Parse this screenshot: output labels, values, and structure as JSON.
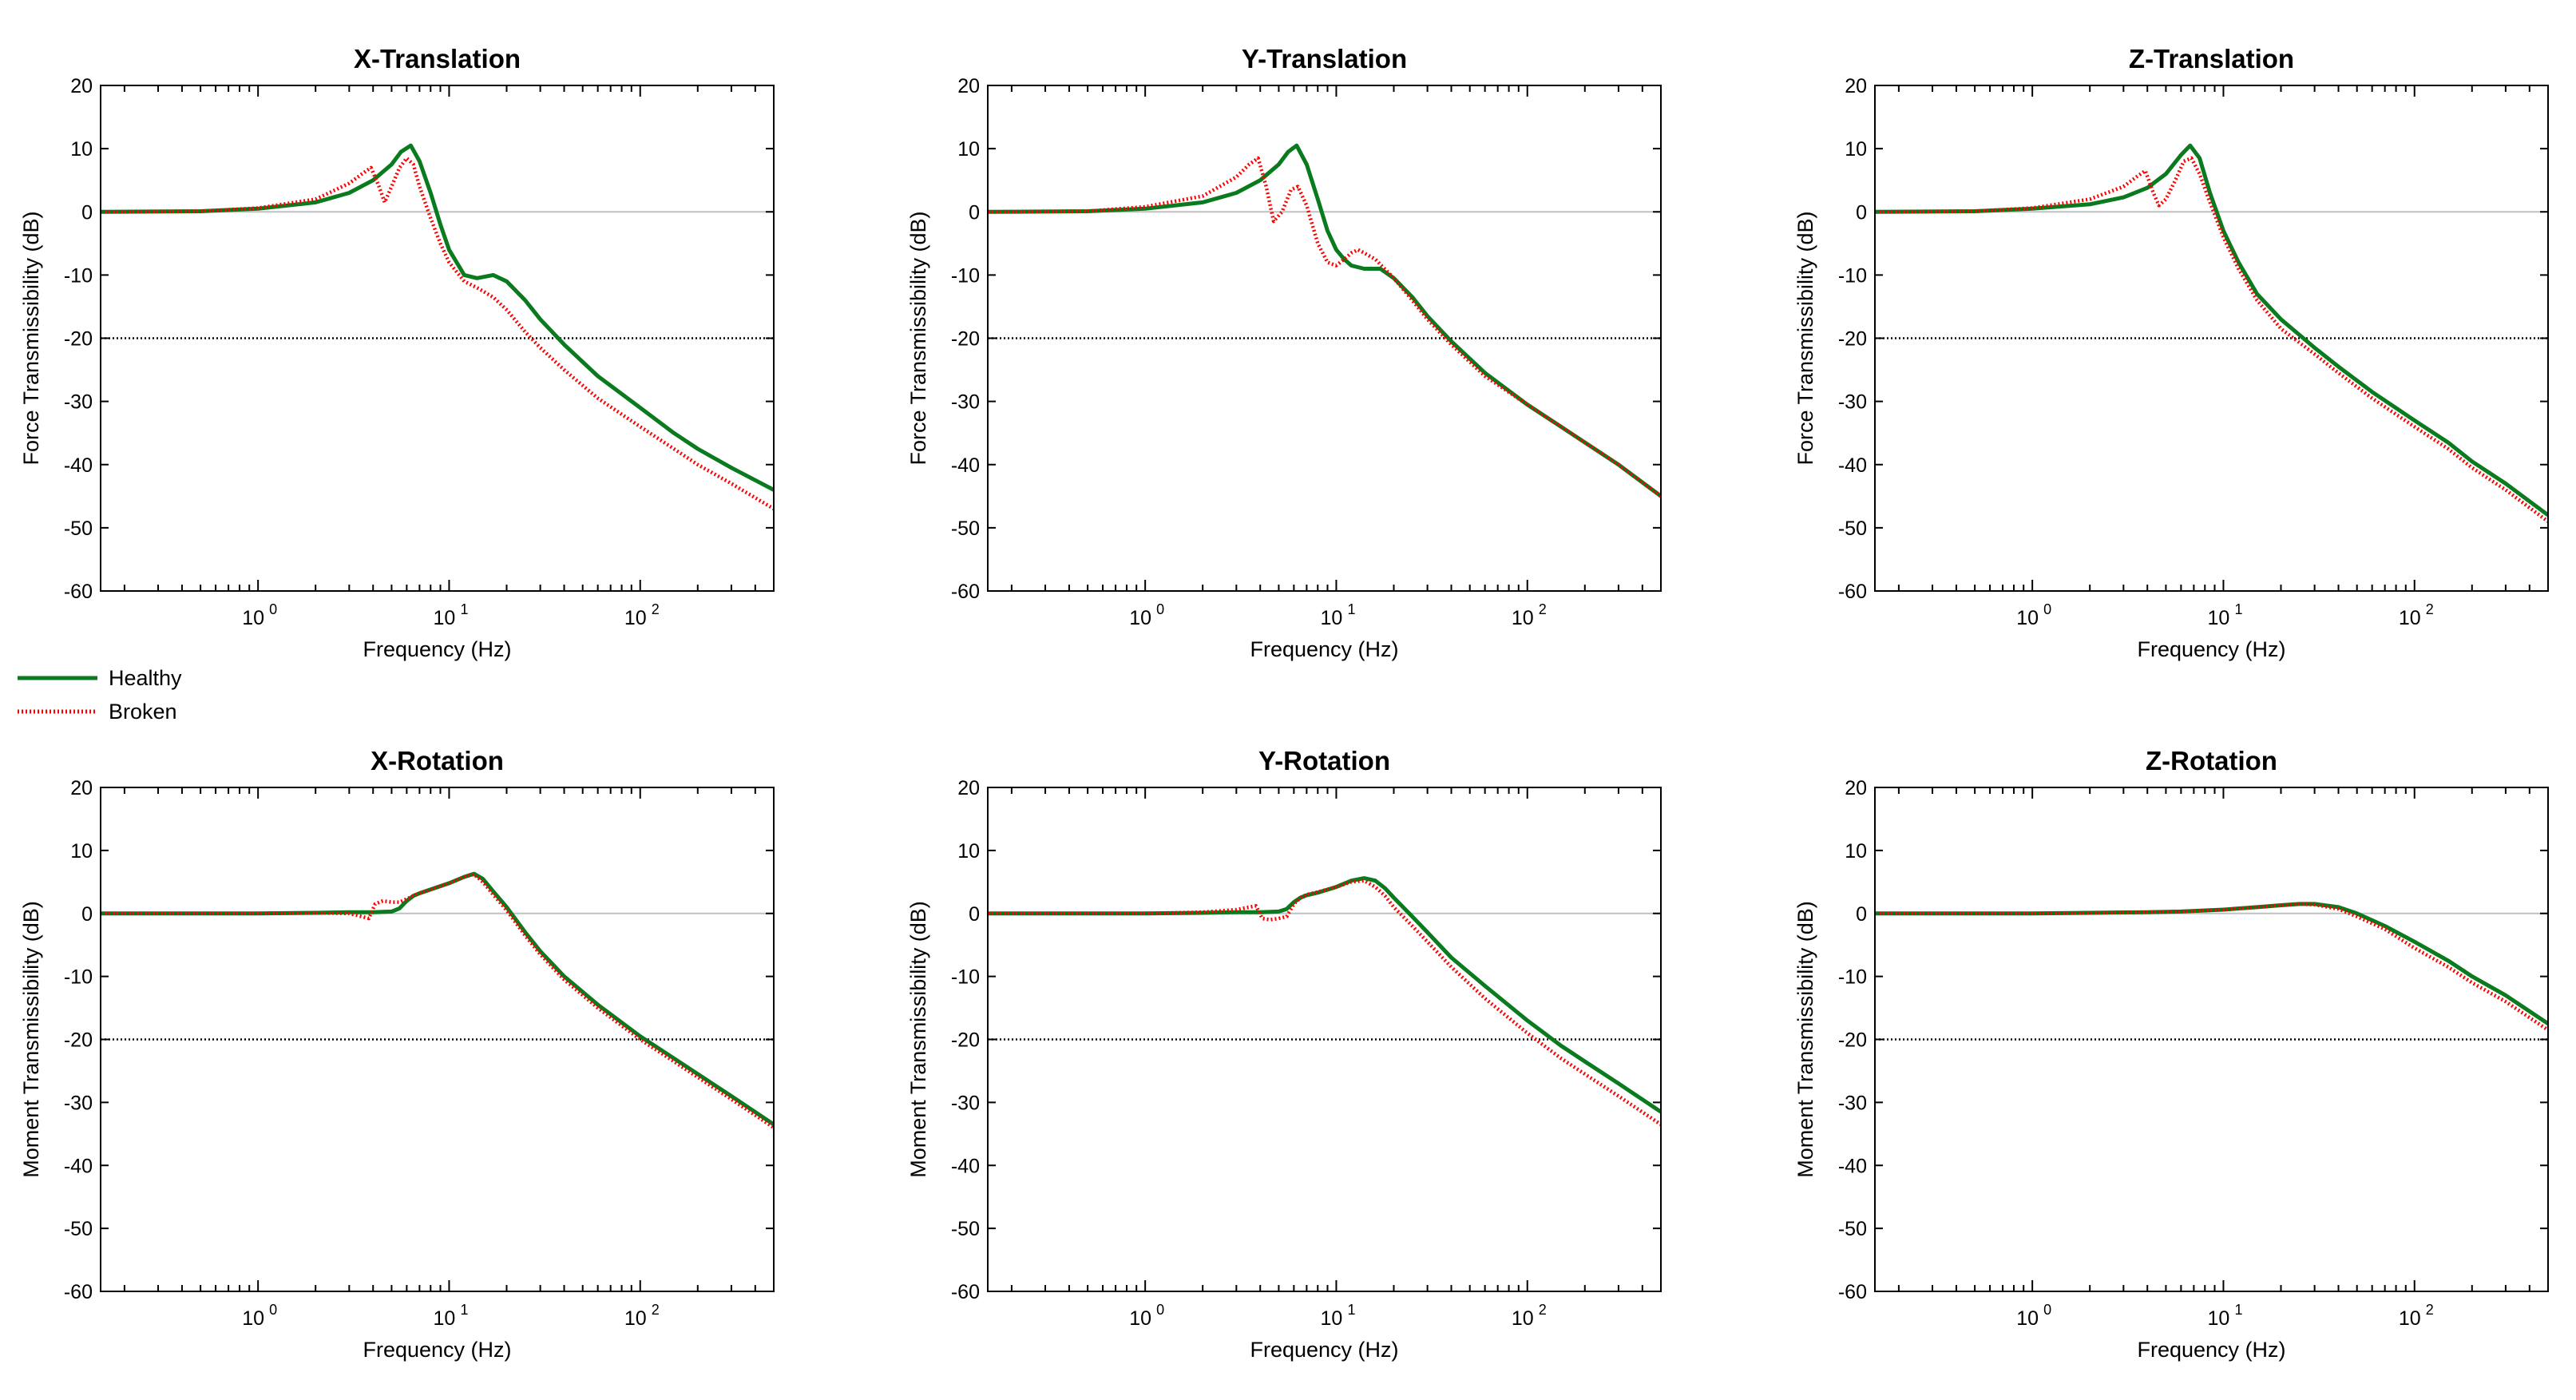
{
  "colors": {
    "healthy": "#0a7a1e",
    "broken": "#ff0000",
    "zero_line": "#c0c0c0",
    "threshold": "#000000"
  },
  "legend": {
    "healthy": "Healthy",
    "broken": "Broken"
  },
  "chart_data": [
    {
      "type": "line",
      "title": "X-Translation",
      "xlabel": "Frequency (Hz)",
      "ylabel": "Force Transmissibility  (dB)",
      "xscale": "log",
      "xlim": [
        0.15,
        500
      ],
      "ylim": [
        -60,
        20
      ],
      "yticks": [
        20,
        10,
        0,
        -10,
        -20,
        -30,
        -40,
        -50,
        -60
      ],
      "xticks": [
        {
          "value": 1,
          "base": "10",
          "exp": "0"
        },
        {
          "value": 10,
          "base": "10",
          "exp": "1"
        },
        {
          "value": 100,
          "base": "10",
          "exp": "2"
        }
      ],
      "reference_lines": [
        {
          "y": 0,
          "style": "zero"
        },
        {
          "y": -20,
          "style": "threshold"
        }
      ],
      "series": [
        {
          "name": "Healthy",
          "style": "solid",
          "x": [
            0.15,
            0.5,
            1,
            2,
            3,
            4,
            5,
            5.6,
            6.3,
            7,
            8,
            9,
            10,
            12,
            14,
            17,
            20,
            25,
            30,
            40,
            60,
            100,
            150,
            200,
            300,
            500
          ],
          "y": [
            0,
            0.1,
            0.5,
            1.5,
            3,
            5,
            7.5,
            9.5,
            10.5,
            8,
            3,
            -2,
            -6,
            -10,
            -10.5,
            -10,
            -11,
            -14,
            -17,
            -21,
            -26,
            -31,
            -35,
            -37.5,
            -40.5,
            -44
          ]
        },
        {
          "name": "Broken",
          "style": "dotted",
          "x": [
            0.15,
            0.5,
            1,
            2,
            3,
            3.5,
            3.9,
            4.3,
            4.6,
            5,
            5.5,
            6,
            6.5,
            7,
            8,
            9,
            10,
            12,
            14,
            17,
            20,
            25,
            30,
            40,
            60,
            100,
            150,
            200,
            300,
            500
          ],
          "y": [
            0,
            0.1,
            0.6,
            2,
            4.5,
            6,
            7,
            4,
            1.5,
            4,
            7,
            8.5,
            7.5,
            4,
            -1,
            -5,
            -8,
            -11,
            -12,
            -13.5,
            -15.5,
            -19,
            -21.5,
            -25,
            -29.5,
            -34,
            -37.5,
            -40,
            -43,
            -47
          ]
        }
      ]
    },
    {
      "type": "line",
      "title": "Y-Translation",
      "xlabel": "Frequency (Hz)",
      "ylabel": "Force Transmissibility  (dB)",
      "xscale": "log",
      "xlim": [
        0.15,
        500
      ],
      "ylim": [
        -60,
        20
      ],
      "yticks": [
        20,
        10,
        0,
        -10,
        -20,
        -30,
        -40,
        -50,
        -60
      ],
      "xticks": [
        {
          "value": 1,
          "base": "10",
          "exp": "0"
        },
        {
          "value": 10,
          "base": "10",
          "exp": "1"
        },
        {
          "value": 100,
          "base": "10",
          "exp": "2"
        }
      ],
      "reference_lines": [
        {
          "y": 0,
          "style": "zero"
        },
        {
          "y": -20,
          "style": "threshold"
        }
      ],
      "series": [
        {
          "name": "Healthy",
          "style": "solid",
          "x": [
            0.15,
            0.5,
            1,
            2,
            3,
            4,
            5,
            5.6,
            6.2,
            7,
            8,
            9,
            10,
            11,
            12,
            14,
            17,
            20,
            25,
            30,
            40,
            60,
            100,
            150,
            200,
            300,
            500
          ],
          "y": [
            0,
            0.1,
            0.5,
            1.5,
            3,
            5,
            7.5,
            9.5,
            10.5,
            7.5,
            2,
            -3,
            -6,
            -7.5,
            -8.5,
            -9,
            -9,
            -10.5,
            -13.5,
            -16.5,
            -20.5,
            -25.5,
            -30.5,
            -34,
            -36.5,
            -40,
            -45
          ]
        },
        {
          "name": "Broken",
          "style": "dotted",
          "x": [
            0.15,
            0.5,
            1,
            2,
            3,
            3.5,
            3.9,
            4.3,
            4.7,
            5.2,
            5.8,
            6.3,
            7,
            8,
            9,
            10,
            11,
            12,
            13,
            14,
            16,
            20,
            25,
            30,
            40,
            60,
            100,
            150,
            200,
            300,
            500
          ],
          "y": [
            0,
            0.1,
            0.8,
            2.5,
            5.5,
            7.5,
            8.5,
            4,
            -1.5,
            0,
            3.5,
            4,
            1,
            -5,
            -8,
            -8.5,
            -7.5,
            -6.5,
            -6,
            -6.5,
            -7.5,
            -10.5,
            -14,
            -17,
            -21,
            -26,
            -30.5,
            -34,
            -36.5,
            -40,
            -45
          ]
        }
      ]
    },
    {
      "type": "line",
      "title": "Z-Translation",
      "xlabel": "Frequency (Hz)",
      "ylabel": "Force Transmissibility  (dB)",
      "xscale": "log",
      "xlim": [
        0.15,
        500
      ],
      "ylim": [
        -60,
        20
      ],
      "yticks": [
        20,
        10,
        0,
        -10,
        -20,
        -30,
        -40,
        -50,
        -60
      ],
      "xticks": [
        {
          "value": 1,
          "base": "10",
          "exp": "0"
        },
        {
          "value": 10,
          "base": "10",
          "exp": "1"
        },
        {
          "value": 100,
          "base": "10",
          "exp": "2"
        }
      ],
      "reference_lines": [
        {
          "y": 0,
          "style": "zero"
        },
        {
          "y": -20,
          "style": "threshold"
        }
      ],
      "series": [
        {
          "name": "Healthy",
          "style": "solid",
          "x": [
            0.15,
            0.5,
            1,
            2,
            3,
            4,
            5,
            6,
            6.7,
            7.5,
            8.5,
            10,
            12,
            15,
            20,
            30,
            40,
            60,
            100,
            150,
            200,
            300,
            500
          ],
          "y": [
            0,
            0.1,
            0.5,
            1.2,
            2.3,
            3.8,
            6,
            9,
            10.5,
            8.5,
            3,
            -3,
            -8,
            -13,
            -17,
            -21.5,
            -24.5,
            -28.5,
            -33,
            -36.5,
            -39.5,
            -43,
            -48
          ]
        },
        {
          "name": "Broken",
          "style": "dotted",
          "x": [
            0.15,
            0.5,
            1,
            2,
            3,
            3.5,
            3.9,
            4.3,
            4.6,
            5,
            5.6,
            6.2,
            6.8,
            7.5,
            8.5,
            10,
            12,
            15,
            20,
            30,
            40,
            60,
            100,
            150,
            200,
            300,
            500
          ],
          "y": [
            0,
            0.1,
            0.6,
            2,
            4,
            5.5,
            6.5,
            3,
            1,
            2,
            5,
            8,
            8.5,
            6,
            1.5,
            -4,
            -9,
            -14,
            -18.5,
            -22.5,
            -25.5,
            -29.5,
            -34,
            -37.5,
            -40.5,
            -44,
            -49
          ]
        }
      ]
    },
    {
      "type": "line",
      "title": "X-Rotation",
      "xlabel": "Frequency (Hz)",
      "ylabel": "Moment Transmissibility  (dB)",
      "xscale": "log",
      "xlim": [
        0.15,
        500
      ],
      "ylim": [
        -60,
        20
      ],
      "yticks": [
        20,
        10,
        0,
        -10,
        -20,
        -30,
        -40,
        -50,
        -60
      ],
      "xticks": [
        {
          "value": 1,
          "base": "10",
          "exp": "0"
        },
        {
          "value": 10,
          "base": "10",
          "exp": "1"
        },
        {
          "value": 100,
          "base": "10",
          "exp": "2"
        }
      ],
      "reference_lines": [
        {
          "y": 0,
          "style": "zero"
        },
        {
          "y": -20,
          "style": "threshold"
        }
      ],
      "series": [
        {
          "name": "Healthy",
          "style": "solid",
          "x": [
            0.15,
            1,
            2,
            3,
            4,
            5,
            5.5,
            6,
            6.5,
            7,
            8,
            10,
            12,
            13.5,
            15,
            17,
            20,
            25,
            30,
            40,
            60,
            100,
            150,
            200,
            300,
            500
          ],
          "y": [
            0,
            0,
            0.1,
            0.2,
            0.2,
            0.3,
            0.8,
            2,
            2.8,
            3.2,
            3.8,
            4.8,
            5.8,
            6.3,
            5.5,
            3.5,
            1,
            -3,
            -6,
            -10,
            -14.5,
            -19.5,
            -23,
            -25.5,
            -29,
            -33.5
          ]
        },
        {
          "name": "Broken",
          "style": "dotted",
          "x": [
            0.15,
            1,
            2,
            3,
            3.5,
            3.8,
            4.1,
            4.5,
            5,
            5.5,
            6,
            6.5,
            7,
            8,
            10,
            12,
            13.5,
            15,
            17,
            20,
            25,
            30,
            40,
            60,
            100,
            150,
            200,
            300,
            500
          ],
          "y": [
            0,
            0,
            0.1,
            0,
            -0.5,
            -0.8,
            1.5,
            2,
            1.8,
            1.8,
            2.3,
            2.8,
            3.2,
            3.8,
            4.8,
            5.8,
            6.2,
            5,
            3,
            0.5,
            -3.5,
            -6.5,
            -10.5,
            -15,
            -20,
            -23.5,
            -26,
            -29.5,
            -34
          ]
        }
      ]
    },
    {
      "type": "line",
      "title": "Y-Rotation",
      "xlabel": "Frequency (Hz)",
      "ylabel": "Moment Transmissibility  (dB)",
      "xscale": "log",
      "xlim": [
        0.15,
        500
      ],
      "ylim": [
        -60,
        20
      ],
      "yticks": [
        20,
        10,
        0,
        -10,
        -20,
        -30,
        -40,
        -50,
        -60
      ],
      "xticks": [
        {
          "value": 1,
          "base": "10",
          "exp": "0"
        },
        {
          "value": 10,
          "base": "10",
          "exp": "1"
        },
        {
          "value": 100,
          "base": "10",
          "exp": "2"
        }
      ],
      "reference_lines": [
        {
          "y": 0,
          "style": "zero"
        },
        {
          "y": -20,
          "style": "threshold"
        }
      ],
      "series": [
        {
          "name": "Healthy",
          "style": "solid",
          "x": [
            0.15,
            1,
            2,
            3,
            4,
            5,
            5.5,
            6,
            6.5,
            7,
            8,
            10,
            12,
            14,
            16,
            18,
            20,
            25,
            30,
            40,
            60,
            100,
            150,
            200,
            300,
            500
          ],
          "y": [
            0,
            0,
            0.1,
            0.2,
            0.2,
            0.3,
            0.7,
            1.8,
            2.5,
            2.9,
            3.3,
            4.2,
            5.2,
            5.6,
            5.2,
            4,
            2.5,
            -0.5,
            -3,
            -7,
            -11.5,
            -17,
            -21,
            -23.5,
            -27,
            -31.5
          ]
        },
        {
          "name": "Broken",
          "style": "dotted",
          "x": [
            0.15,
            1,
            2,
            3,
            3.5,
            3.8,
            4.1,
            4.5,
            5,
            5.5,
            6,
            6.5,
            7,
            8,
            10,
            12,
            14,
            16,
            18,
            20,
            25,
            30,
            40,
            60,
            100,
            150,
            200,
            300,
            500
          ],
          "y": [
            0,
            0,
            0.2,
            0.6,
            1,
            1.2,
            -0.8,
            -1,
            -0.8,
            -0.5,
            1.5,
            2.5,
            3,
            3.4,
            4.2,
            5,
            5.2,
            4.2,
            2.8,
            1,
            -2,
            -4.5,
            -8.5,
            -13.5,
            -19,
            -23,
            -25.5,
            -29,
            -33.5
          ]
        }
      ]
    },
    {
      "type": "line",
      "title": "Z-Rotation",
      "xlabel": "Frequency (Hz)",
      "ylabel": "Moment Transmissibility  (dB)",
      "xscale": "log",
      "xlim": [
        0.15,
        500
      ],
      "ylim": [
        -60,
        20
      ],
      "yticks": [
        20,
        10,
        0,
        -10,
        -20,
        -30,
        -40,
        -50,
        -60
      ],
      "xticks": [
        {
          "value": 1,
          "base": "10",
          "exp": "0"
        },
        {
          "value": 10,
          "base": "10",
          "exp": "1"
        },
        {
          "value": 100,
          "base": "10",
          "exp": "2"
        }
      ],
      "reference_lines": [
        {
          "y": 0,
          "style": "zero"
        },
        {
          "y": -20,
          "style": "threshold"
        }
      ],
      "series": [
        {
          "name": "Healthy",
          "style": "solid",
          "x": [
            0.15,
            1,
            2,
            4,
            6,
            10,
            15,
            20,
            25,
            30,
            40,
            50,
            70,
            100,
            150,
            200,
            300,
            500
          ],
          "y": [
            0,
            0,
            0.1,
            0.2,
            0.3,
            0.6,
            1,
            1.3,
            1.5,
            1.5,
            1,
            0,
            -2,
            -4.5,
            -7.5,
            -10,
            -13,
            -17.5
          ]
        },
        {
          "name": "Broken",
          "style": "dotted",
          "x": [
            0.15,
            1,
            2,
            4,
            6,
            10,
            15,
            20,
            25,
            30,
            40,
            50,
            70,
            100,
            150,
            200,
            300,
            500
          ],
          "y": [
            0,
            0,
            0.1,
            0.2,
            0.3,
            0.6,
            1,
            1.3,
            1.5,
            1.4,
            0.7,
            -0.5,
            -2.5,
            -5.5,
            -8.5,
            -11,
            -14,
            -18.5
          ]
        }
      ]
    }
  ]
}
